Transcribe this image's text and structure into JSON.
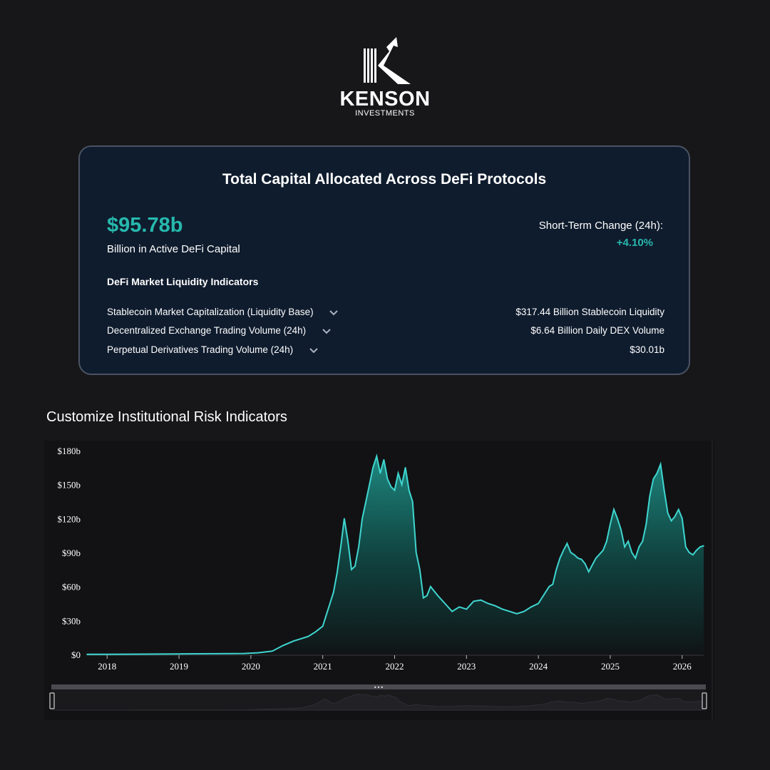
{
  "brand": {
    "name": "KENSON",
    "sub": "INVESTMENTS"
  },
  "card": {
    "title": "Total Capital Allocated Across DeFi Protocols",
    "total_value": "$95.78b",
    "total_caption": "Billion in Active DeFi Capital",
    "change_label": "Short-Term Change (24h):",
    "change_value": "+4.10%",
    "indicators_title": "DeFi Market Liquidity Indicators",
    "indicators": [
      {
        "label": "Stablecoin Market Capitalization (Liquidity Base)",
        "value": "$317.44 Billion Stablecoin Liquidity"
      },
      {
        "label": "Decentralized Exchange Trading Volume (24h)",
        "value": "$6.64 Billion Daily DEX Volume"
      },
      {
        "label": "Perpetual Derivatives Trading Volume (24h)",
        "value": "$30.01b"
      }
    ]
  },
  "section_heading": "Customize Institutional Risk Indicators",
  "colors": {
    "accent": "#27b8ad",
    "card_bg": "#0f1c2e",
    "page_bg": "#17171a",
    "line": "#3fd6d0"
  },
  "chart_data": {
    "type": "area",
    "title": "",
    "xlabel": "",
    "ylabel": "",
    "ylim": [
      0,
      180
    ],
    "xlim": [
      2017.72,
      2026.3
    ],
    "y_ticks": [
      "$0",
      "$30b",
      "$60b",
      "$90b",
      "$120b",
      "$150b",
      "$180b"
    ],
    "y_tick_values": [
      0,
      30,
      60,
      90,
      120,
      150,
      180
    ],
    "x_ticks": [
      "2018",
      "2019",
      "2020",
      "2021",
      "2022",
      "2023",
      "2024",
      "2025",
      "2026"
    ],
    "x_tick_values": [
      2018,
      2019,
      2020,
      2021,
      2022,
      2023,
      2024,
      2025,
      2026
    ],
    "grid": false,
    "legend": "none",
    "range_selector": true,
    "series": [
      {
        "x": [
          2017.72,
          2018.0,
          2018.5,
          2019.0,
          2019.5,
          2019.9,
          2020.1,
          2020.3,
          2020.45,
          2020.6,
          2020.7,
          2020.8,
          2020.9,
          2021.0,
          2021.05,
          2021.1,
          2021.15,
          2021.2,
          2021.25,
          2021.3,
          2021.35,
          2021.4,
          2021.45,
          2021.5,
          2021.55,
          2021.6,
          2021.65,
          2021.7,
          2021.75,
          2021.8,
          2021.85,
          2021.9,
          2021.95,
          2022.0,
          2022.05,
          2022.1,
          2022.15,
          2022.2,
          2022.25,
          2022.3,
          2022.35,
          2022.4,
          2022.45,
          2022.5,
          2022.6,
          2022.7,
          2022.8,
          2022.9,
          2023.0,
          2023.1,
          2023.2,
          2023.3,
          2023.4,
          2023.5,
          2023.6,
          2023.7,
          2023.8,
          2023.9,
          2024.0,
          2024.1,
          2024.15,
          2024.2,
          2024.25,
          2024.3,
          2024.35,
          2024.4,
          2024.45,
          2024.5,
          2024.55,
          2024.6,
          2024.65,
          2024.7,
          2024.8,
          2024.9,
          2024.95,
          2025.0,
          2025.05,
          2025.1,
          2025.15,
          2025.2,
          2025.25,
          2025.3,
          2025.35,
          2025.4,
          2025.45,
          2025.5,
          2025.55,
          2025.6,
          2025.65,
          2025.7,
          2025.75,
          2025.8,
          2025.85,
          2025.9,
          2025.95,
          2026.0,
          2026.05,
          2026.1,
          2026.15,
          2026.2,
          2026.25,
          2026.3
        ],
        "y": [
          0.1,
          0.2,
          0.3,
          0.5,
          0.7,
          0.9,
          1.5,
          3,
          8,
          12,
          14,
          16,
          20,
          25,
          35,
          45,
          55,
          72,
          95,
          120,
          100,
          75,
          78,
          95,
          120,
          135,
          150,
          165,
          175,
          160,
          172,
          155,
          148,
          145,
          160,
          150,
          165,
          145,
          135,
          90,
          75,
          50,
          52,
          60,
          52,
          45,
          38,
          42,
          40,
          47,
          48,
          45,
          43,
          40,
          38,
          36,
          38,
          42,
          45,
          55,
          60,
          62,
          75,
          85,
          92,
          98,
          90,
          88,
          85,
          84,
          80,
          73,
          85,
          92,
          100,
          115,
          128,
          120,
          110,
          95,
          100,
          90,
          85,
          95,
          100,
          115,
          140,
          155,
          160,
          168,
          145,
          125,
          118,
          122,
          128,
          120,
          95,
          90,
          88,
          92,
          95,
          96
        ]
      }
    ]
  }
}
